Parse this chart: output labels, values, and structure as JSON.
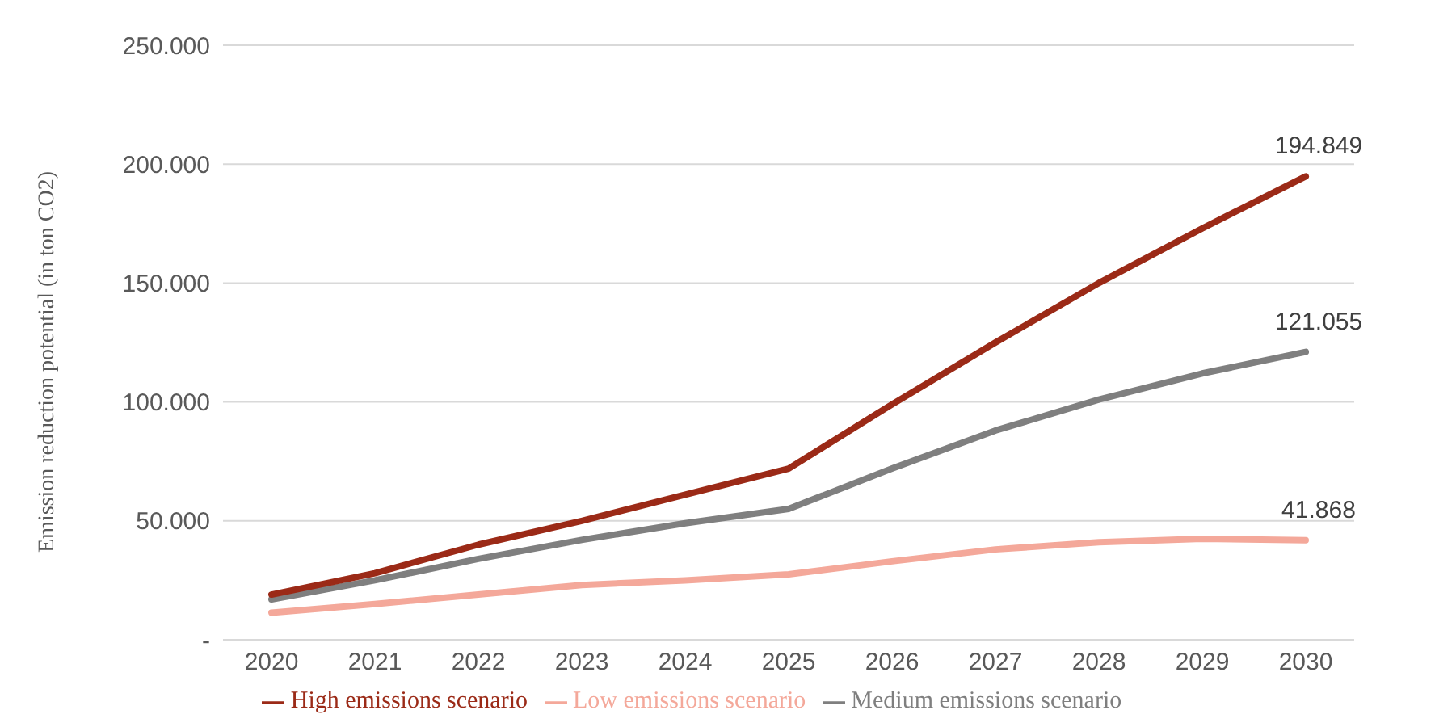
{
  "chart_data": {
    "type": "line",
    "ylabel": "Emission reduction potential (in ton CO2)",
    "categories": [
      "2020",
      "2021",
      "2022",
      "2023",
      "2024",
      "2025",
      "2026",
      "2027",
      "2028",
      "2029",
      "2030"
    ],
    "series": [
      {
        "name": "Low emissions scenario",
        "color": "#f4a89a",
        "values": [
          11400,
          15000,
          19000,
          23000,
          25000,
          27500,
          33000,
          38000,
          41000,
          42500,
          41868
        ],
        "value_labels": [
          null,
          null,
          null,
          null,
          null,
          null,
          null,
          null,
          null,
          null,
          "41.868"
        ]
      },
      {
        "name": "Medium emissions scenario",
        "color": "#7f7f7f",
        "values": [
          17000,
          25000,
          34000,
          42000,
          49000,
          55000,
          72000,
          88000,
          101000,
          112000,
          121055
        ],
        "value_labels": [
          null,
          null,
          null,
          null,
          null,
          null,
          null,
          null,
          null,
          null,
          "121.055"
        ]
      },
      {
        "name": "High emissions scenario",
        "color": "#9b2a17",
        "values": [
          19000,
          28000,
          40000,
          50000,
          61000,
          72000,
          99000,
          125000,
          150000,
          173000,
          194849
        ],
        "value_labels": [
          null,
          null,
          null,
          null,
          null,
          null,
          null,
          null,
          null,
          null,
          "194.849"
        ]
      }
    ],
    "ylim": [
      0,
      250000
    ],
    "yticks": [
      {
        "value": 0,
        "label": "-"
      },
      {
        "value": 50000,
        "label": "50.000"
      },
      {
        "value": 100000,
        "label": "100.000"
      },
      {
        "value": 150000,
        "label": "150.000"
      },
      {
        "value": 200000,
        "label": "200.000"
      },
      {
        "value": 250000,
        "label": "250.000"
      }
    ],
    "grid": "y",
    "legend": "bottom",
    "marker": "none",
    "line_style": "solid"
  }
}
